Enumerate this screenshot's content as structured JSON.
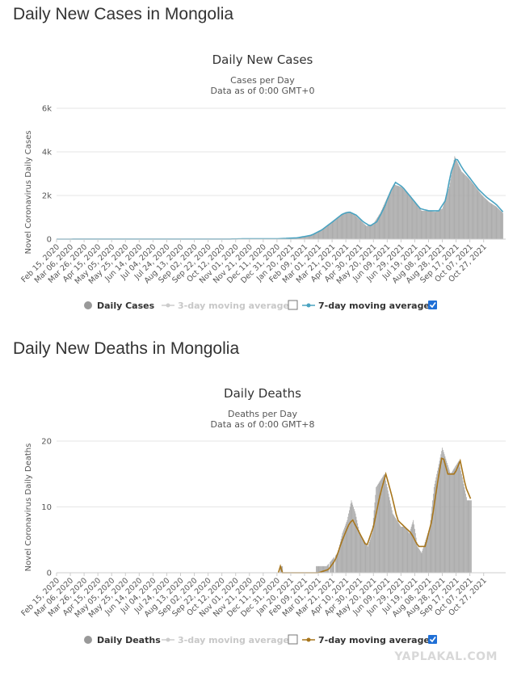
{
  "headings": {
    "cases": "Daily New Cases in Mongolia",
    "deaths": "Daily New Deaths in Mongolia"
  },
  "watermark": "YAPLAKAL.COM",
  "colors": {
    "bar": "#a8a8a8",
    "cases_line": "#4aa3c1",
    "deaths_line": "#a8761c",
    "grid": "#e6e6e6",
    "checkbox_on": "#1f6fd6"
  },
  "x_dates": [
    "Feb 15, 2020",
    "Mar 06, 2020",
    "Mar 26, 2020",
    "Apr 15, 2020",
    "May 05, 2020",
    "May 25, 2020",
    "Jun 14, 2020",
    "Jul 04, 2020",
    "Jul 24, 2020",
    "Aug 13, 2020",
    "Sep 02, 2020",
    "Sep 22, 2020",
    "Oct 12, 2020",
    "Nov 01, 2020",
    "Nov 21, 2020",
    "Dec 11, 2020",
    "Dec 31, 2020",
    "Jan 20, 2021",
    "Feb 09, 2021",
    "Mar 01, 2021",
    "Mar 21, 2021",
    "Apr 10, 2021",
    "Apr 30, 2021",
    "May 20, 2021",
    "Jun 09, 2021",
    "Jun 29, 2021",
    "Jul 19, 2021",
    "Aug 08, 2021",
    "Aug 28, 2021",
    "Sep 17, 2021",
    "Oct 07, 2021",
    "Oct 27, 2021"
  ],
  "chart_data": [
    {
      "type": "bar",
      "title": "Daily New Cases",
      "subtitle1": "Cases per Day",
      "subtitle2": "Data as of 0:00 GMT+0",
      "ylabel": "Novel Coronavirus Daily Cases",
      "xlabel": "",
      "ylim": [
        0,
        6000
      ],
      "yticks": [
        "0",
        "2k",
        "4k",
        "6k"
      ],
      "ytick_values": [
        0,
        2000,
        4000,
        6000
      ],
      "grid": true,
      "legend_position": "bottom",
      "legend": {
        "series1": "Daily Cases",
        "series2": "3-day moving average",
        "series3": "7-day moving average"
      },
      "series_bars": [
        {
          "day": 0,
          "value": 0
        },
        {
          "day": 20,
          "value": 2
        },
        {
          "day": 40,
          "value": 5
        },
        {
          "day": 60,
          "value": 3
        },
        {
          "day": 80,
          "value": 2
        },
        {
          "day": 100,
          "value": 3
        },
        {
          "day": 120,
          "value": 2
        },
        {
          "day": 140,
          "value": 2
        },
        {
          "day": 160,
          "value": 1
        },
        {
          "day": 180,
          "value": 1
        },
        {
          "day": 200,
          "value": 2
        },
        {
          "day": 220,
          "value": 2
        },
        {
          "day": 240,
          "value": 3
        },
        {
          "day": 260,
          "value": 8
        },
        {
          "day": 280,
          "value": 20
        },
        {
          "day": 300,
          "value": 10
        },
        {
          "day": 320,
          "value": 15
        },
        {
          "day": 340,
          "value": 40
        },
        {
          "day": 355,
          "value": 80
        },
        {
          "day": 370,
          "value": 200
        },
        {
          "day": 380,
          "value": 350
        },
        {
          "day": 390,
          "value": 550
        },
        {
          "day": 400,
          "value": 800
        },
        {
          "day": 410,
          "value": 1050
        },
        {
          "day": 420,
          "value": 1250
        },
        {
          "day": 430,
          "value": 1200
        },
        {
          "day": 440,
          "value": 900
        },
        {
          "day": 450,
          "value": 600
        },
        {
          "day": 460,
          "value": 700
        },
        {
          "day": 470,
          "value": 1200
        },
        {
          "day": 480,
          "value": 1900
        },
        {
          "day": 490,
          "value": 2500
        },
        {
          "day": 500,
          "value": 2400
        },
        {
          "day": 510,
          "value": 2100
        },
        {
          "day": 520,
          "value": 1700
        },
        {
          "day": 530,
          "value": 1300
        },
        {
          "day": 540,
          "value": 1300
        },
        {
          "day": 550,
          "value": 1250
        },
        {
          "day": 560,
          "value": 1400
        },
        {
          "day": 570,
          "value": 2400
        },
        {
          "day": 578,
          "value": 3800
        },
        {
          "day": 588,
          "value": 3100
        },
        {
          "day": 598,
          "value": 2800
        },
        {
          "day": 608,
          "value": 2400
        },
        {
          "day": 618,
          "value": 2000
        },
        {
          "day": 628,
          "value": 1700
        },
        {
          "day": 638,
          "value": 1500
        },
        {
          "day": 648,
          "value": 1200
        }
      ],
      "series_avg": [
        {
          "day": 0,
          "value": 0
        },
        {
          "day": 50,
          "value": 4
        },
        {
          "day": 100,
          "value": 3
        },
        {
          "day": 150,
          "value": 2
        },
        {
          "day": 200,
          "value": 2
        },
        {
          "day": 250,
          "value": 4
        },
        {
          "day": 280,
          "value": 18
        },
        {
          "day": 320,
          "value": 15
        },
        {
          "day": 350,
          "value": 60
        },
        {
          "day": 370,
          "value": 180
        },
        {
          "day": 385,
          "value": 420
        },
        {
          "day": 400,
          "value": 780
        },
        {
          "day": 415,
          "value": 1150
        },
        {
          "day": 425,
          "value": 1250
        },
        {
          "day": 435,
          "value": 1100
        },
        {
          "day": 445,
          "value": 800
        },
        {
          "day": 455,
          "value": 600
        },
        {
          "day": 465,
          "value": 800
        },
        {
          "day": 475,
          "value": 1400
        },
        {
          "day": 485,
          "value": 2200
        },
        {
          "day": 492,
          "value": 2600
        },
        {
          "day": 502,
          "value": 2400
        },
        {
          "day": 515,
          "value": 1900
        },
        {
          "day": 528,
          "value": 1400
        },
        {
          "day": 540,
          "value": 1300
        },
        {
          "day": 555,
          "value": 1300
        },
        {
          "day": 565,
          "value": 1800
        },
        {
          "day": 572,
          "value": 3000
        },
        {
          "day": 580,
          "value": 3750
        },
        {
          "day": 590,
          "value": 3200
        },
        {
          "day": 600,
          "value": 2800
        },
        {
          "day": 612,
          "value": 2300
        },
        {
          "day": 625,
          "value": 1900
        },
        {
          "day": 638,
          "value": 1600
        },
        {
          "day": 648,
          "value": 1250
        }
      ]
    },
    {
      "type": "bar",
      "title": "Daily Deaths",
      "subtitle1": "Deaths per Day",
      "subtitle2": "Data as of 0:00 GMT+8",
      "ylabel": "Novel Coronavirus Daily Deaths",
      "xlabel": "",
      "ylim": [
        0,
        20
      ],
      "yticks": [
        "0",
        "10",
        "20"
      ],
      "ytick_values": [
        0,
        10,
        20
      ],
      "grid": true,
      "legend_position": "bottom",
      "legend": {
        "series1": "Daily Deaths",
        "series2": "3-day moving average",
        "series3": "7-day moving average"
      },
      "series_bars": [
        {
          "day": 325,
          "value": 1
        },
        {
          "day": 380,
          "value": 1
        },
        {
          "day": 385,
          "value": 1
        },
        {
          "day": 392,
          "value": 1
        },
        {
          "day": 400,
          "value": 2
        },
        {
          "day": 408,
          "value": 3
        },
        {
          "day": 415,
          "value": 6
        },
        {
          "day": 422,
          "value": 8
        },
        {
          "day": 428,
          "value": 11
        },
        {
          "day": 434,
          "value": 9
        },
        {
          "day": 440,
          "value": 6
        },
        {
          "day": 446,
          "value": 5
        },
        {
          "day": 452,
          "value": 4
        },
        {
          "day": 458,
          "value": 6
        },
        {
          "day": 464,
          "value": 13
        },
        {
          "day": 470,
          "value": 14
        },
        {
          "day": 476,
          "value": 15
        },
        {
          "day": 482,
          "value": 12
        },
        {
          "day": 488,
          "value": 9
        },
        {
          "day": 494,
          "value": 8
        },
        {
          "day": 500,
          "value": 7
        },
        {
          "day": 506,
          "value": 7
        },
        {
          "day": 512,
          "value": 6
        },
        {
          "day": 518,
          "value": 8
        },
        {
          "day": 524,
          "value": 4
        },
        {
          "day": 530,
          "value": 3
        },
        {
          "day": 536,
          "value": 5
        },
        {
          "day": 542,
          "value": 7
        },
        {
          "day": 548,
          "value": 13
        },
        {
          "day": 554,
          "value": 16
        },
        {
          "day": 560,
          "value": 19
        },
        {
          "day": 566,
          "value": 17
        },
        {
          "day": 572,
          "value": 15
        },
        {
          "day": 578,
          "value": 16
        },
        {
          "day": 584,
          "value": 17
        },
        {
          "day": 590,
          "value": 14
        },
        {
          "day": 596,
          "value": 11
        },
        {
          "day": 602,
          "value": 11
        }
      ],
      "series_avg": [
        {
          "day": 322,
          "value": 0
        },
        {
          "day": 325,
          "value": 1
        },
        {
          "day": 328,
          "value": 0
        },
        {
          "day": 380,
          "value": 0
        },
        {
          "day": 395,
          "value": 0.5
        },
        {
          "day": 405,
          "value": 2
        },
        {
          "day": 415,
          "value": 5
        },
        {
          "day": 425,
          "value": 7.5
        },
        {
          "day": 430,
          "value": 8
        },
        {
          "day": 440,
          "value": 6
        },
        {
          "day": 450,
          "value": 4
        },
        {
          "day": 460,
          "value": 7
        },
        {
          "day": 470,
          "value": 12
        },
        {
          "day": 478,
          "value": 15
        },
        {
          "day": 486,
          "value": 12
        },
        {
          "day": 495,
          "value": 8
        },
        {
          "day": 505,
          "value": 7
        },
        {
          "day": 515,
          "value": 6
        },
        {
          "day": 525,
          "value": 4
        },
        {
          "day": 535,
          "value": 4
        },
        {
          "day": 545,
          "value": 8
        },
        {
          "day": 552,
          "value": 13
        },
        {
          "day": 560,
          "value": 18
        },
        {
          "day": 568,
          "value": 15
        },
        {
          "day": 578,
          "value": 15
        },
        {
          "day": 586,
          "value": 17
        },
        {
          "day": 594,
          "value": 13
        },
        {
          "day": 602,
          "value": 11
        }
      ]
    }
  ]
}
